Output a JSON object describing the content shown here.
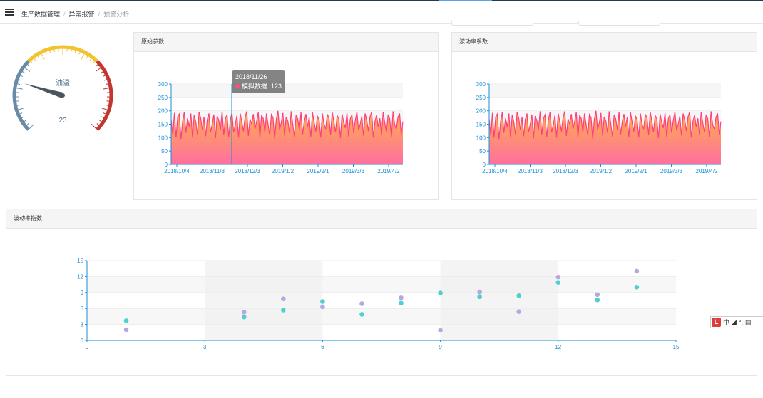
{
  "header": {
    "breadcrumb": [
      "生产数据管理",
      "异常报警",
      "预警分析"
    ]
  },
  "gauge": {
    "label": "油温",
    "value": 23,
    "min": 0,
    "max": 100,
    "colors": [
      "#6a8ba8",
      "#f2c230",
      "#c23531"
    ]
  },
  "panels": {
    "raw_params": "原始参数",
    "volatility_coef": "波动率系数",
    "volatility_index": "波动率指数"
  },
  "tooltip": {
    "date": "2018/11/26",
    "series": "模拟数据",
    "value": "123"
  },
  "ime": {
    "logo": "L",
    "lang": "中"
  },
  "chart_data": [
    {
      "type": "area",
      "title": "原始参数",
      "series_name": "模拟数据",
      "x_tick_labels": [
        "2018/10/4",
        "2018/11/3",
        "2018/12/3",
        "2019/1/2",
        "2019/2/1",
        "2019/3/3",
        "2019/4/2"
      ],
      "ylim": [
        0,
        300
      ],
      "y_ticks": [
        0,
        50,
        100,
        150,
        200,
        250,
        300
      ],
      "values": [
        168,
        110,
        192,
        100,
        178,
        188,
        95,
        160,
        195,
        118,
        172,
        140,
        190,
        100,
        185,
        158,
        112,
        196,
        172,
        128,
        178,
        105,
        168,
        190,
        120,
        150,
        186,
        98,
        180,
        165,
        130,
        198,
        110,
        172,
        185,
        102,
        165,
        194,
        120,
        148,
        182,
        100,
        190,
        160,
        123,
        176,
        198,
        106,
        170,
        150,
        188,
        132,
        160,
        195,
        100,
        182,
        172,
        120,
        190,
        148,
        110,
        186,
        175,
        96,
        168,
        200,
        130,
        155,
        192,
        108,
        178,
        162,
        118,
        198,
        150,
        104,
        184,
        170,
        130,
        195,
        112,
        160,
        188,
        140,
        176,
        102,
        194,
        158,
        122,
        180,
        168,
        100,
        190,
        150,
        132,
        186,
        175,
        110,
        196,
        160,
        120,
        182,
        172,
        98,
        188,
        158,
        136,
        192,
        104,
        170,
        185,
        118,
        164,
        196,
        128,
        150,
        180,
        108,
        190,
        166,
        124,
        178,
        196,
        100,
        160,
        184,
        140,
        172,
        110,
        194,
        155,
        120,
        186,
        170,
        102,
        198,
        148,
        132,
        176,
        190,
        112,
        160
      ],
      "colors": {
        "line": "#ff3d7f",
        "fill_top": "#ffb04a",
        "fill_bottom": "#ff6fa0"
      },
      "grid": true
    },
    {
      "type": "area",
      "title": "波动率系数",
      "x_tick_labels": [
        "2018/10/4",
        "2018/11/3",
        "2018/12/3",
        "2019/1/2",
        "2019/2/1",
        "2019/3/3",
        "2019/4/2"
      ],
      "ylim": [
        0,
        300
      ],
      "y_ticks": [
        0,
        50,
        100,
        150,
        200,
        250,
        300
      ],
      "values": [
        168,
        110,
        192,
        100,
        178,
        188,
        95,
        160,
        195,
        118,
        172,
        140,
        190,
        100,
        185,
        158,
        112,
        196,
        172,
        128,
        178,
        105,
        168,
        190,
        120,
        150,
        186,
        98,
        180,
        165,
        130,
        198,
        110,
        172,
        185,
        102,
        165,
        194,
        120,
        148,
        182,
        100,
        190,
        160,
        123,
        176,
        198,
        106,
        170,
        150,
        188,
        132,
        160,
        195,
        100,
        182,
        172,
        120,
        190,
        148,
        110,
        186,
        175,
        96,
        168,
        200,
        130,
        155,
        192,
        108,
        178,
        162,
        118,
        198,
        150,
        104,
        184,
        170,
        130,
        195,
        112,
        160,
        188,
        140,
        176,
        102,
        194,
        158,
        122,
        180,
        168,
        100,
        190,
        150,
        132,
        186,
        175,
        110,
        196,
        160,
        120,
        182,
        172,
        98,
        188,
        158,
        136,
        192,
        104,
        170,
        185,
        118,
        164,
        196,
        128,
        150,
        180,
        108,
        190,
        166,
        124,
        178,
        196,
        100,
        160,
        184,
        140,
        172,
        110,
        194,
        155,
        120,
        186,
        170,
        102,
        198,
        148,
        132,
        176,
        190,
        112,
        160
      ],
      "colors": {
        "line": "#ff3d7f",
        "fill_top": "#ffb04a",
        "fill_bottom": "#ff6fa0"
      },
      "grid": true
    },
    {
      "type": "scatter",
      "title": "波动率指数",
      "xlim": [
        0,
        15
      ],
      "ylim": [
        0,
        15
      ],
      "x_ticks": [
        0,
        3,
        6,
        9,
        12,
        15
      ],
      "y_ticks": [
        0,
        3,
        6,
        9,
        12,
        15
      ],
      "series": [
        {
          "color": "#b9a6e0",
          "points": [
            [
              1,
              2
            ],
            [
              4,
              5.3
            ],
            [
              5,
              7.8
            ],
            [
              6,
              6.3
            ],
            [
              7,
              6.9
            ],
            [
              8,
              8
            ],
            [
              9,
              1.9
            ],
            [
              10,
              9.1
            ],
            [
              11,
              5.4
            ],
            [
              12,
              11.9
            ],
            [
              13,
              8.6
            ],
            [
              14,
              13
            ]
          ]
        },
        {
          "color": "#4fd0cf",
          "points": [
            [
              1,
              3.7
            ],
            [
              4,
              4.4
            ],
            [
              5,
              5.7
            ],
            [
              6,
              7.3
            ],
            [
              7,
              4.9
            ],
            [
              8,
              7
            ],
            [
              9,
              8.9
            ],
            [
              10,
              8.2
            ],
            [
              11,
              8.4
            ],
            [
              12,
              10.9
            ],
            [
              13,
              7.6
            ],
            [
              14,
              10
            ]
          ]
        }
      ],
      "grid": true
    }
  ]
}
